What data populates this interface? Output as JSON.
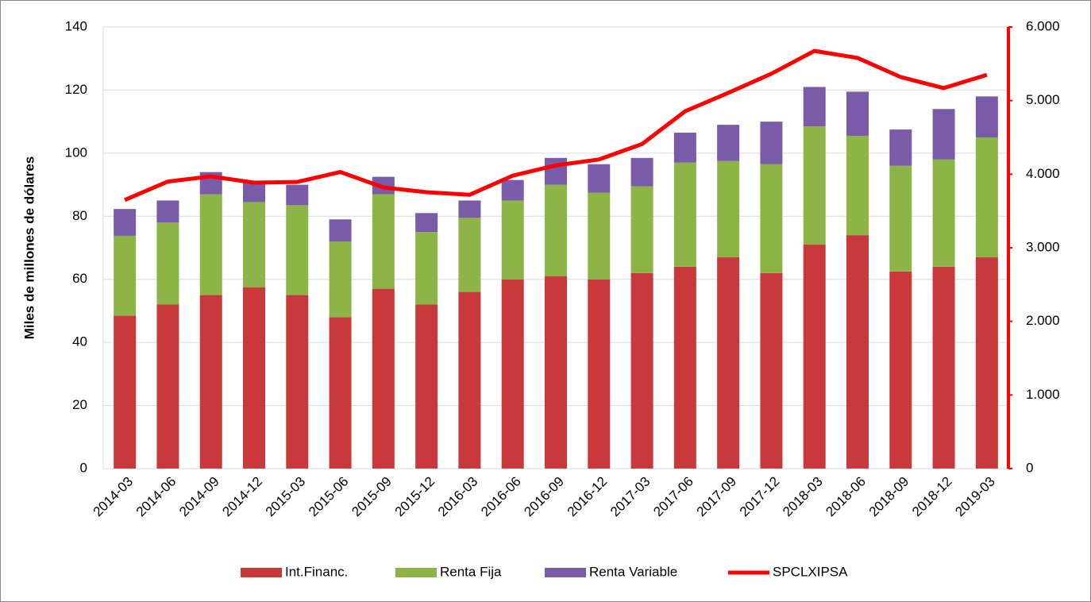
{
  "chart_data": {
    "type": "bar_line",
    "ylabel": "Miles de millones de dólares",
    "categories": [
      "2014-03",
      "2014-06",
      "2014-09",
      "2014-12",
      "2015-03",
      "2015-06",
      "2015-09",
      "2015-12",
      "2016-03",
      "2016-06",
      "2016-09",
      "2016-12",
      "2017-03",
      "2017-06",
      "2017-09",
      "2017-12",
      "2018-03",
      "2018-06",
      "2018-09",
      "2018-12",
      "2019-03"
    ],
    "stacked": true,
    "series": [
      {
        "name": "Int.Financ.",
        "type": "bar",
        "color": "#c9383a",
        "values": [
          48.5,
          52,
          55,
          57.5,
          55,
          48,
          57,
          52,
          56,
          60,
          61,
          60,
          62,
          64,
          67,
          62,
          71,
          74,
          62.5,
          64,
          67
        ]
      },
      {
        "name": "Renta Fija",
        "type": "bar",
        "color": "#8db446",
        "values": [
          25.3,
          26,
          32,
          27,
          28.5,
          24,
          30,
          23,
          23.5,
          25,
          29,
          27.5,
          27.5,
          33,
          30.5,
          34.5,
          37.5,
          31.5,
          33.5,
          34,
          38
        ]
      },
      {
        "name": "Renta Variable",
        "type": "bar",
        "color": "#7a5ba8",
        "values": [
          8.5,
          7,
          7,
          6.5,
          6.5,
          7,
          5.5,
          6,
          5.5,
          6.5,
          8.5,
          9,
          9,
          9.5,
          11.5,
          13.5,
          12.5,
          14,
          11.5,
          16,
          13
        ]
      },
      {
        "name": "SPCLXIPSA",
        "type": "line",
        "axis": "y2",
        "color": "#ff0000",
        "values": [
          3650,
          3900,
          3970,
          3885,
          3895,
          4030,
          3820,
          3755,
          3720,
          3980,
          4120,
          4200,
          4410,
          4855,
          5105,
          5365,
          5675,
          5580,
          5320,
          5170,
          5350
        ]
      }
    ],
    "ylim": [
      0,
      140
    ],
    "yticks": [
      0,
      20,
      40,
      60,
      80,
      100,
      120,
      140
    ],
    "y2lim": [
      0,
      6000
    ],
    "y2ticks": [
      0,
      {
        "value": 1000,
        "label": "1.000"
      },
      {
        "value": 2000,
        "label": "2.000"
      },
      {
        "value": 3000,
        "label": "3.000"
      },
      {
        "value": 4000,
        "label": "4.000"
      },
      {
        "value": 5000,
        "label": "5.000"
      },
      {
        "value": 6000,
        "label": "6.000"
      }
    ],
    "legend": "bottom"
  }
}
